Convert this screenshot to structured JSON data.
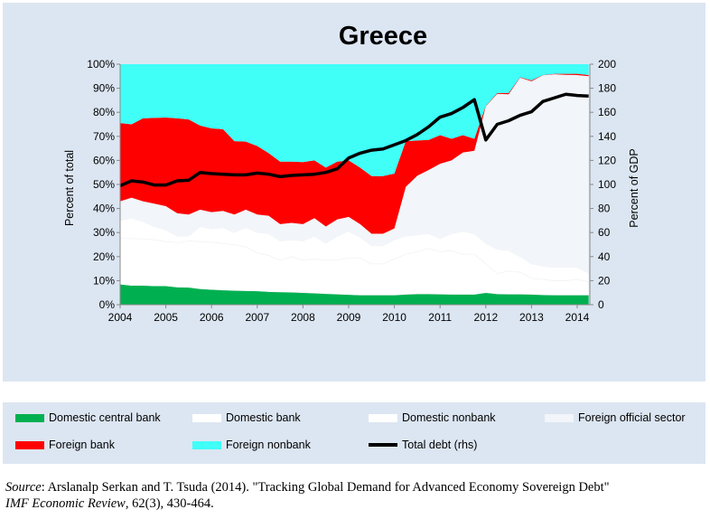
{
  "chart_data": {
    "type": "area",
    "title": "Greece",
    "ylabel": "Percent of total",
    "y2label": "Percent of GDP",
    "ylim": [
      0,
      100
    ],
    "y2lim": [
      0,
      200
    ],
    "yticks": [
      "0%",
      "10%",
      "20%",
      "30%",
      "40%",
      "50%",
      "60%",
      "70%",
      "80%",
      "90%",
      "100%"
    ],
    "y2ticks": [
      "0",
      "20",
      "40",
      "60",
      "80",
      "100",
      "120",
      "140",
      "160",
      "180",
      "200"
    ],
    "xticks": [
      "2004",
      "2005",
      "2006",
      "2007",
      "2008",
      "2009",
      "2010",
      "2011",
      "2012",
      "2013",
      "2014"
    ],
    "x_start": "2004Q1",
    "x_frequency": "quarterly",
    "stacked": true,
    "grid": false,
    "legend_position": "bottom",
    "series": [
      {
        "name": "Domestic central bank",
        "color": "#00b050",
        "values": [
          8.5,
          8,
          8,
          7.8,
          7.8,
          7.3,
          7.2,
          6.6,
          6.3,
          6.1,
          5.9,
          5.8,
          5.7,
          5.4,
          5.3,
          5.2,
          5,
          4.8,
          4.6,
          4.4,
          4.2,
          4,
          4,
          4,
          4,
          4.3,
          4.5,
          4.5,
          4.4,
          4.3,
          4.3,
          4.3,
          5,
          4.5,
          4.4,
          4.4,
          4.3,
          4.1,
          4,
          4,
          4,
          4
        ]
      },
      {
        "name": "Domestic bank",
        "color": "#ffffff",
        "values": [
          19,
          19.5,
          19.3,
          19.2,
          18.5,
          18.5,
          19.3,
          19.7,
          19.7,
          19.4,
          19.1,
          18.2,
          15.8,
          15.1,
          13.2,
          14.8,
          13.5,
          14.2,
          13.9,
          14.1,
          15.3,
          15.5,
          13,
          13,
          15,
          16.7,
          17.5,
          19,
          17.6,
          18.2,
          16.7,
          16.7,
          12,
          8.5,
          9.6,
          9.1,
          6.7,
          6.4,
          6,
          6,
          6.5,
          5.5
        ]
      },
      {
        "name": "Domestic nonbank",
        "color": "#ffffff",
        "values": [
          7.5,
          8.5,
          7.2,
          5.5,
          4.7,
          2.7,
          2,
          6.2,
          5.5,
          6.5,
          5,
          8,
          8.5,
          9,
          8,
          7,
          8,
          9.5,
          7,
          10,
          11,
          8.5,
          7.5,
          7.5,
          8,
          7.5,
          7,
          6,
          5.5,
          7,
          9.5,
          8.5,
          8.5,
          10,
          8.5,
          6.5,
          6,
          5.5,
          5.5,
          5.5,
          5,
          3.5
        ]
      },
      {
        "name": "Foreign official sector",
        "color": "#f2f5f9",
        "values": [
          8,
          8.5,
          8.5,
          9.5,
          10,
          9.5,
          9,
          7,
          7,
          7,
          7.5,
          7.5,
          7.5,
          7.5,
          7,
          7,
          7,
          7.5,
          7,
          7,
          6,
          5.5,
          5,
          5,
          4.7,
          20.5,
          24.6,
          26.5,
          31.1,
          30.5,
          32.8,
          34.5,
          57,
          64.7,
          65,
          74.4,
          75.9,
          79.4,
          80.3,
          80.1,
          80,
          82
        ]
      },
      {
        "name": "Foreign bank",
        "color": "#ff0000",
        "values": [
          32.5,
          30.5,
          34.5,
          35.7,
          36.8,
          39.5,
          39.5,
          35,
          34.8,
          34,
          30.5,
          28.3,
          28.5,
          26,
          26,
          25.5,
          25.8,
          24,
          24.5,
          24,
          23.5,
          23.5,
          24,
          24,
          22.8,
          19,
          14.7,
          12.5,
          11.9,
          9,
          7.2,
          5,
          0.2,
          0.3,
          0.5,
          0.2,
          0.4,
          0.1,
          0.2,
          0.4,
          0.5,
          0.5
        ]
      },
      {
        "name": "Foreign nonbank",
        "color": "#3ffff7",
        "values": [
          24.5,
          25,
          22.5,
          22.3,
          22.2,
          22.5,
          23,
          25.5,
          26.7,
          27,
          32,
          32.2,
          34,
          37,
          40.5,
          40.5,
          40.7,
          40,
          43,
          40.5,
          40,
          43,
          46.5,
          46.5,
          45.5,
          32,
          31.7,
          31.5,
          29.5,
          31,
          29.5,
          31,
          17.3,
          12,
          12,
          5.4,
          6.7,
          4.5,
          4,
          4,
          4,
          4.5
        ]
      }
    ],
    "line_series": {
      "name": "Total debt (rhs)",
      "color": "#000000",
      "axis": "right",
      "values": [
        99,
        103,
        102,
        99.5,
        99.5,
        103,
        103.5,
        110,
        109,
        108.5,
        108,
        108,
        109.5,
        108.5,
        106.5,
        107.5,
        108,
        108.5,
        110,
        113,
        122,
        126,
        128.5,
        129.5,
        133,
        136.5,
        141.5,
        148,
        156,
        159,
        164,
        170.5,
        137,
        150,
        153,
        157.5,
        160.5,
        169,
        172,
        175,
        174,
        173.5
      ]
    }
  },
  "source": {
    "label": "Source",
    "text": ": Arslanalp Serkan and T. Tsuda (2014). \"Tracking Global Demand for Advanced Economy Sovereign Debt\"",
    "journal": "IMF Economic Review",
    "citation": ", 62(3), 430-464."
  }
}
